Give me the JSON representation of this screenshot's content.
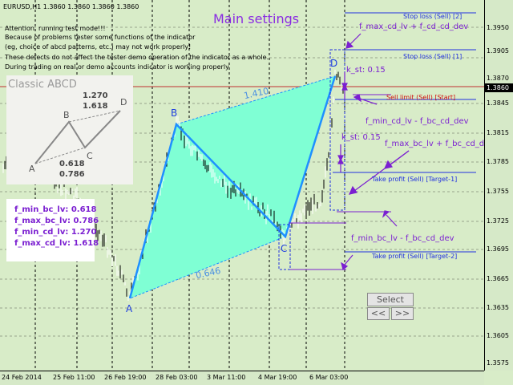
{
  "chart_header": "EURUSD,H1  1.3860 1.3860 1.3860 1.3860",
  "notice_lines": [
    "Attention, running test mode!!!",
    "Because of problems tester some functions of the indicator",
    "(eg, choice of abcd patterns, etc.) may not work properly!",
    "These defects do not affect the tester demo operation of the indicator as a whole.",
    "During trading on real or demo accounts indicator is working properly."
  ],
  "main_settings": "Main settings",
  "classic": {
    "title": "Classic ABCD",
    "points": [
      "A",
      "B",
      "C",
      "D"
    ],
    "ratio_top": "1.270",
    "ratio_top2": "1.618",
    "ratio_bottom": "0.618",
    "ratio_bottom2": "0.786"
  },
  "levels": [
    "f_min_bc_lv: 0.618",
    "f_max_bc_lv: 0.786",
    "f_min_cd_lv: 1.270",
    "f_max_cd_lv: 1.618"
  ],
  "pattern": {
    "points": [
      "A",
      "B",
      "C",
      "D"
    ],
    "ratio_ad": "1.410",
    "ratio_bc": "0.646"
  },
  "right_labels": {
    "stop_loss_2": "Stop loss (Sell) [2]",
    "stop_loss_1": "Stop loss (Sell) [1]",
    "sell_limit": "Sell limit (Sell) [Start]",
    "tp1": "Take profit (Sell) [Target-1]",
    "tp2": "Take profit (Sell) [Target-2]"
  },
  "annotations": {
    "max_cd_plus": "f_max_cd_lv + f_cd_cd_dev",
    "k_st_1": "k_st: 0.15",
    "min_cd_minus": "f_min_cd_lv - f_bc_cd_dev",
    "k_st_2": "k_st: 0.15",
    "max_bc_plus": "f_max_bc_lv + f_bc_cd_dev",
    "min_bc_minus": "f_min_bc_lv - f_bc_cd_dev"
  },
  "buttons": {
    "select": "Select",
    "prev": "<<",
    "next": ">>"
  },
  "price_axis": [
    "1.3950",
    "1.3905",
    "1.3870",
    "1.3845",
    "1.3815",
    "1.3785",
    "1.3755",
    "1.3725",
    "1.3695",
    "1.3665",
    "1.3635",
    "1.3605",
    "1.3575"
  ],
  "current_price": "1.3860",
  "time_axis": [
    "24 Feb 2014",
    "25 Feb 11:00",
    "26 Feb 19:00",
    "28 Feb 03:00",
    "3 Mar 11:00",
    "4 Mar 19:00",
    "6 Mar 03:00"
  ],
  "colors": {
    "background": "#d8ecc8",
    "pattern_fill": "#7fffd4",
    "pattern_line": "#1e90ff",
    "label_blue": "#2030e0",
    "label_purple": "#7b1fd1",
    "sell_limit": "#d01010"
  }
}
